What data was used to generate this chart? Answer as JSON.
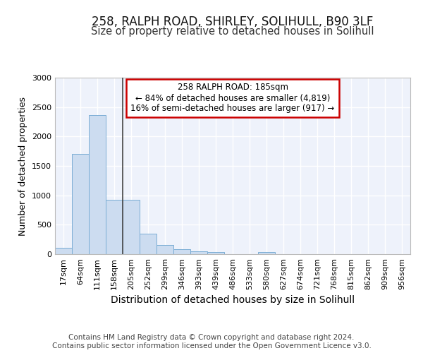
{
  "title1": "258, RALPH ROAD, SHIRLEY, SOLIHULL, B90 3LF",
  "title2": "Size of property relative to detached houses in Solihull",
  "xlabel": "Distribution of detached houses by size in Solihull",
  "ylabel": "Number of detached properties",
  "footer1": "Contains HM Land Registry data © Crown copyright and database right 2024.",
  "footer2": "Contains public sector information licensed under the Open Government Licence v3.0.",
  "annotation_line1": "258 RALPH ROAD: 185sqm",
  "annotation_line2": "← 84% of detached houses are smaller (4,819)",
  "annotation_line3": "16% of semi-detached houses are larger (917) →",
  "bar_labels": [
    "17sqm",
    "64sqm",
    "111sqm",
    "158sqm",
    "205sqm",
    "252sqm",
    "299sqm",
    "346sqm",
    "393sqm",
    "439sqm",
    "486sqm",
    "533sqm",
    "580sqm",
    "627sqm",
    "674sqm",
    "721sqm",
    "768sqm",
    "815sqm",
    "862sqm",
    "909sqm",
    "956sqm"
  ],
  "bar_values": [
    110,
    1700,
    2370,
    930,
    930,
    350,
    155,
    80,
    50,
    35,
    0,
    0,
    35,
    0,
    0,
    0,
    0,
    0,
    0,
    0,
    0
  ],
  "bar_color": "#ccdcf0",
  "bar_edge_color": "#7aadd4",
  "vline_color": "#444444",
  "annotation_box_facecolor": "#ffffff",
  "annotation_box_edgecolor": "#cc0000",
  "ylim": [
    0,
    3000
  ],
  "yticks": [
    0,
    500,
    1000,
    1500,
    2000,
    2500,
    3000
  ],
  "bg_color": "#eef2fb",
  "grid_color": "#ffffff",
  "title1_fontsize": 12,
  "title2_fontsize": 10.5,
  "ylabel_fontsize": 9,
  "xlabel_fontsize": 10,
  "tick_fontsize": 8,
  "annotation_fontsize": 8.5,
  "footer_fontsize": 7.5
}
